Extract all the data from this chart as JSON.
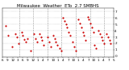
{
  "title": "Milwaukee  Weather  ETo  2.7 SMBHS",
  "background_color": "#ffffff",
  "dot_color": "#cc0000",
  "dot_size": 2.5,
  "grid_color": "#999999",
  "title_fontsize": 4,
  "tick_fontsize": 3.0,
  "x_tick_labels": [
    "6",
    "9",
    "12",
    "3",
    "6",
    "9",
    "12",
    "1",
    "4",
    "7",
    "10",
    "1",
    "4",
    "7",
    "10",
    "1",
    "4",
    "7",
    "10",
    "1",
    "4",
    "7",
    "5"
  ],
  "y_tick_labels": [
    "0",
    "1",
    "2",
    "3",
    "4",
    "5",
    "6",
    "7"
  ],
  "ylim": [
    -0.2,
    7.5
  ],
  "xlim": [
    -0.5,
    23.0
  ],
  "data_x": [
    0.2,
    0.6,
    1.5,
    2.2,
    2.6,
    2.9,
    3.5,
    3.8,
    4.1,
    4.4,
    4.7,
    5.5,
    6.2,
    6.5,
    6.8,
    7.3,
    7.6,
    7.9,
    8.2,
    9.1,
    9.4,
    9.7,
    10.2,
    10.5,
    10.8,
    11.0,
    11.6,
    11.9,
    12.3,
    12.6,
    12.9,
    13.2,
    13.5,
    13.8,
    14.4,
    14.7,
    15.0,
    15.6,
    15.9,
    16.2,
    16.5,
    16.8,
    17.0,
    17.5,
    17.8,
    18.1,
    18.4,
    18.7,
    19.0,
    19.3,
    19.8,
    20.1,
    20.4,
    20.7,
    21.0,
    21.5,
    21.8,
    22.1,
    22.4
  ],
  "data_y": [
    4.8,
    3.2,
    1.5,
    3.5,
    3.0,
    2.0,
    3.8,
    3.2,
    2.6,
    2.2,
    2.8,
    0.8,
    3.5,
    2.8,
    2.2,
    3.5,
    3.0,
    2.5,
    1.8,
    3.0,
    2.2,
    1.5,
    3.2,
    2.8,
    2.2,
    1.8,
    1.2,
    0.8,
    6.0,
    5.5,
    5.0,
    4.5,
    3.8,
    3.2,
    2.2,
    1.5,
    0.8,
    5.8,
    5.2,
    4.5,
    3.8,
    3.2,
    2.5,
    6.2,
    5.8,
    5.2,
    4.5,
    3.8,
    1.8,
    1.2,
    4.0,
    3.5,
    3.0,
    2.5,
    2.0,
    3.5,
    3.0,
    2.5,
    2.0
  ],
  "vline_positions": [
    3.0,
    6.0,
    9.0,
    12.0,
    15.0,
    18.0,
    21.0
  ]
}
